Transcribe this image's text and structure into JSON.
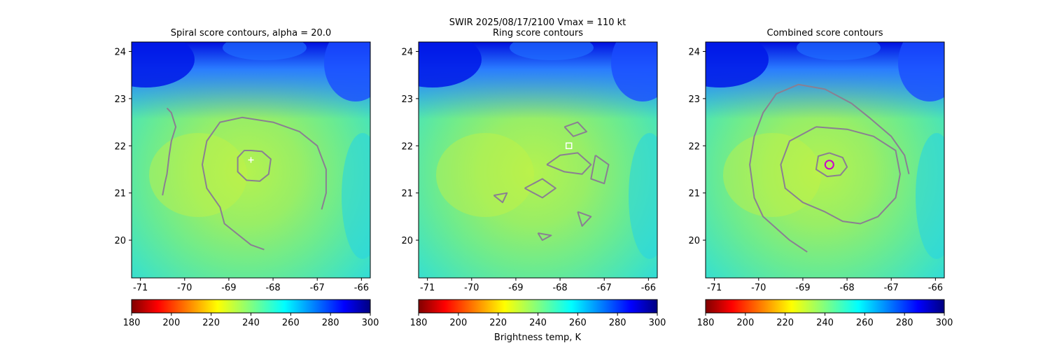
{
  "figure": {
    "suptitle_line1": "SWIR  2025/08/17/2100    Vmax = 110 kt",
    "colorbar_label": "Brightness temp, K"
  },
  "chart_data": [
    {
      "type": "heatmap",
      "title": "Spiral score contours, alpha = 20.0",
      "xlabel": "",
      "ylabel": "",
      "xlim": [
        -71.2,
        -65.8
      ],
      "ylim": [
        19.2,
        24.2
      ],
      "xticks": [
        -71,
        -70,
        -69,
        -68,
        -67,
        -66
      ],
      "yticks": [
        20,
        21,
        22,
        23,
        24
      ],
      "colorbar": {
        "label": "",
        "range": [
          180,
          300
        ],
        "ticks": [
          180,
          200,
          220,
          240,
          260,
          280,
          300
        ]
      },
      "marker": {
        "symbol": "+",
        "lon": -68.5,
        "lat": 21.7,
        "color": "#ffffff"
      },
      "contours": [
        [
          [
            -68.5,
            21.9
          ],
          [
            -68.25,
            21.88
          ],
          [
            -68.05,
            21.72
          ],
          [
            -68.1,
            21.4
          ],
          [
            -68.3,
            21.25
          ],
          [
            -68.6,
            21.27
          ],
          [
            -68.8,
            21.45
          ],
          [
            -68.8,
            21.75
          ],
          [
            -68.65,
            21.9
          ],
          [
            -68.5,
            21.9
          ]
        ],
        [
          [
            -68.2,
            19.8
          ],
          [
            -68.5,
            19.9
          ],
          [
            -68.9,
            20.2
          ],
          [
            -69.1,
            20.35
          ],
          [
            -69.2,
            20.7
          ],
          [
            -69.5,
            21.1
          ],
          [
            -69.6,
            21.6
          ],
          [
            -69.5,
            22.1
          ],
          [
            -69.2,
            22.5
          ],
          [
            -68.7,
            22.6
          ],
          [
            -68.0,
            22.5
          ],
          [
            -67.4,
            22.3
          ],
          [
            -67.0,
            22.0
          ],
          [
            -66.8,
            21.5
          ],
          [
            -66.8,
            21.0
          ],
          [
            -66.9,
            20.65
          ]
        ],
        [
          [
            -70.4,
            22.8
          ],
          [
            -70.3,
            22.7
          ],
          [
            -70.2,
            22.4
          ],
          [
            -70.3,
            22.1
          ],
          [
            -70.35,
            21.8
          ],
          [
            -70.4,
            21.4
          ],
          [
            -70.45,
            21.2
          ],
          [
            -70.5,
            20.95
          ]
        ]
      ]
    },
    {
      "type": "heatmap",
      "title": "Ring score contours",
      "xlabel": "",
      "ylabel": "",
      "xlim": [
        -71.2,
        -65.8
      ],
      "ylim": [
        19.2,
        24.2
      ],
      "xticks": [
        -71,
        -70,
        -69,
        -68,
        -67,
        -66
      ],
      "yticks": [
        20,
        21,
        22,
        23,
        24
      ],
      "colorbar": {
        "label": "Brightness temp, K",
        "range": [
          180,
          300
        ],
        "ticks": [
          180,
          200,
          220,
          240,
          260,
          280,
          300
        ]
      },
      "marker": {
        "symbol": "square",
        "lon": -67.8,
        "lat": 22.0,
        "color": "#ffffff"
      },
      "contours": [
        [
          [
            -68.3,
            21.6
          ],
          [
            -68.0,
            21.8
          ],
          [
            -67.6,
            21.85
          ],
          [
            -67.3,
            21.6
          ],
          [
            -67.5,
            21.4
          ],
          [
            -67.9,
            21.45
          ],
          [
            -68.3,
            21.6
          ]
        ],
        [
          [
            -67.2,
            21.8
          ],
          [
            -66.9,
            21.6
          ],
          [
            -67.0,
            21.2
          ],
          [
            -67.3,
            21.3
          ],
          [
            -67.2,
            21.8
          ]
        ],
        [
          [
            -68.8,
            21.1
          ],
          [
            -68.4,
            21.3
          ],
          [
            -68.1,
            21.1
          ],
          [
            -68.4,
            20.9
          ],
          [
            -68.8,
            21.1
          ]
        ],
        [
          [
            -69.5,
            20.95
          ],
          [
            -69.2,
            21.0
          ],
          [
            -69.3,
            20.8
          ],
          [
            -69.5,
            20.95
          ]
        ],
        [
          [
            -67.6,
            20.6
          ],
          [
            -67.3,
            20.5
          ],
          [
            -67.5,
            20.3
          ],
          [
            -67.6,
            20.6
          ]
        ],
        [
          [
            -68.5,
            20.15
          ],
          [
            -68.2,
            20.1
          ],
          [
            -68.4,
            20.0
          ],
          [
            -68.5,
            20.15
          ]
        ],
        [
          [
            -67.9,
            22.4
          ],
          [
            -67.6,
            22.5
          ],
          [
            -67.4,
            22.3
          ],
          [
            -67.7,
            22.2
          ],
          [
            -67.9,
            22.4
          ]
        ]
      ]
    },
    {
      "type": "heatmap",
      "title": "Combined score contours",
      "xlabel": "",
      "ylabel": "",
      "xlim": [
        -71.2,
        -65.8
      ],
      "ylim": [
        19.2,
        24.2
      ],
      "xticks": [
        -71,
        -70,
        -69,
        -68,
        -67,
        -66
      ],
      "yticks": [
        20,
        21,
        22,
        23,
        24
      ],
      "colorbar": {
        "label": "",
        "range": [
          180,
          300
        ],
        "ticks": [
          180,
          200,
          220,
          240,
          260,
          280,
          300
        ]
      },
      "marker": {
        "symbol": "circle",
        "lon": -68.4,
        "lat": 21.6,
        "color": "#cc00cc"
      },
      "contours": [
        [
          [
            -68.4,
            21.85
          ],
          [
            -68.1,
            21.75
          ],
          [
            -68.0,
            21.55
          ],
          [
            -68.15,
            21.38
          ],
          [
            -68.45,
            21.35
          ],
          [
            -68.7,
            21.5
          ],
          [
            -68.65,
            21.78
          ],
          [
            -68.4,
            21.85
          ]
        ],
        [
          [
            -68.7,
            22.4
          ],
          [
            -68.0,
            22.35
          ],
          [
            -67.4,
            22.2
          ],
          [
            -66.9,
            21.9
          ],
          [
            -66.8,
            21.4
          ],
          [
            -66.9,
            20.9
          ],
          [
            -67.3,
            20.5
          ],
          [
            -67.7,
            20.35
          ],
          [
            -68.1,
            20.4
          ],
          [
            -68.5,
            20.6
          ],
          [
            -69.0,
            20.8
          ],
          [
            -69.4,
            21.1
          ],
          [
            -69.5,
            21.6
          ],
          [
            -69.3,
            22.1
          ],
          [
            -68.7,
            22.4
          ]
        ],
        [
          [
            -68.9,
            19.75
          ],
          [
            -69.3,
            20.0
          ],
          [
            -69.9,
            20.5
          ],
          [
            -70.1,
            20.9
          ],
          [
            -70.2,
            21.6
          ],
          [
            -70.1,
            22.2
          ],
          [
            -69.9,
            22.7
          ],
          [
            -69.6,
            23.1
          ],
          [
            -69.1,
            23.3
          ],
          [
            -68.5,
            23.2
          ],
          [
            -67.9,
            22.9
          ],
          [
            -67.5,
            22.6
          ],
          [
            -67.0,
            22.2
          ],
          [
            -66.7,
            21.8
          ],
          [
            -66.6,
            21.4
          ]
        ]
      ]
    }
  ]
}
